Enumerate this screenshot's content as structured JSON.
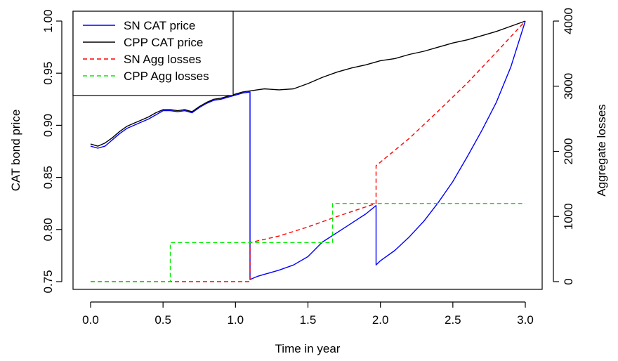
{
  "chart_data": {
    "type": "line",
    "xlabel": "Time in year",
    "ylabel": "CAT bond price",
    "y2label": "Aggregate losses",
    "xlim": [
      0,
      3
    ],
    "ylim": [
      0.75,
      1.0
    ],
    "y2lim": [
      0,
      4000
    ],
    "x_ticks": [
      "0.0",
      "0.5",
      "1.0",
      "1.5",
      "2.0",
      "2.5",
      "3.0"
    ],
    "y_ticks": [
      "0.75",
      "0.80",
      "0.85",
      "0.90",
      "0.95",
      "1.00"
    ],
    "y2_ticks": [
      "0",
      "1000",
      "2000",
      "3000",
      "4000"
    ],
    "legend_position": "top-left",
    "grid": false,
    "series": [
      {
        "name": "SN CAT price",
        "axis": "left",
        "color": "#0000ff",
        "style": "solid",
        "points": [
          [
            0.0,
            0.88
          ],
          [
            0.05,
            0.878
          ],
          [
            0.1,
            0.88
          ],
          [
            0.15,
            0.886
          ],
          [
            0.2,
            0.892
          ],
          [
            0.25,
            0.897
          ],
          [
            0.3,
            0.9
          ],
          [
            0.35,
            0.903
          ],
          [
            0.4,
            0.906
          ],
          [
            0.45,
            0.91
          ],
          [
            0.5,
            0.914
          ],
          [
            0.55,
            0.914
          ],
          [
            0.6,
            0.913
          ],
          [
            0.65,
            0.914
          ],
          [
            0.7,
            0.912
          ],
          [
            0.75,
            0.917
          ],
          [
            0.8,
            0.921
          ],
          [
            0.85,
            0.924
          ],
          [
            0.9,
            0.925
          ],
          [
            0.95,
            0.927
          ],
          [
            1.0,
            0.929
          ],
          [
            1.05,
            0.931
          ],
          [
            1.1,
            0.932
          ],
          [
            1.1,
            0.752
          ],
          [
            1.15,
            0.755
          ],
          [
            1.2,
            0.757
          ],
          [
            1.3,
            0.761
          ],
          [
            1.4,
            0.766
          ],
          [
            1.5,
            0.774
          ],
          [
            1.55,
            0.781
          ],
          [
            1.6,
            0.788
          ],
          [
            1.7,
            0.797
          ],
          [
            1.8,
            0.806
          ],
          [
            1.9,
            0.815
          ],
          [
            1.97,
            0.823
          ],
          [
            1.97,
            0.766
          ],
          [
            2.0,
            0.77
          ],
          [
            2.1,
            0.78
          ],
          [
            2.2,
            0.793
          ],
          [
            2.3,
            0.808
          ],
          [
            2.4,
            0.826
          ],
          [
            2.5,
            0.846
          ],
          [
            2.6,
            0.87
          ],
          [
            2.7,
            0.895
          ],
          [
            2.8,
            0.922
          ],
          [
            2.9,
            0.956
          ],
          [
            3.0,
            1.0
          ]
        ]
      },
      {
        "name": "CPP CAT price",
        "axis": "left",
        "color": "#000000",
        "style": "solid",
        "points": [
          [
            0.0,
            0.882
          ],
          [
            0.05,
            0.88
          ],
          [
            0.1,
            0.883
          ],
          [
            0.15,
            0.888
          ],
          [
            0.2,
            0.894
          ],
          [
            0.25,
            0.899
          ],
          [
            0.3,
            0.902
          ],
          [
            0.35,
            0.905
          ],
          [
            0.4,
            0.908
          ],
          [
            0.45,
            0.912
          ],
          [
            0.5,
            0.915
          ],
          [
            0.55,
            0.915
          ],
          [
            0.6,
            0.914
          ],
          [
            0.65,
            0.915
          ],
          [
            0.7,
            0.913
          ],
          [
            0.75,
            0.918
          ],
          [
            0.8,
            0.922
          ],
          [
            0.85,
            0.925
          ],
          [
            0.9,
            0.926
          ],
          [
            0.95,
            0.928
          ],
          [
            1.0,
            0.93
          ],
          [
            1.05,
            0.932
          ],
          [
            1.1,
            0.933
          ],
          [
            1.15,
            0.934
          ],
          [
            1.2,
            0.935
          ],
          [
            1.3,
            0.934
          ],
          [
            1.4,
            0.935
          ],
          [
            1.5,
            0.94
          ],
          [
            1.6,
            0.946
          ],
          [
            1.7,
            0.951
          ],
          [
            1.8,
            0.955
          ],
          [
            1.9,
            0.958
          ],
          [
            2.0,
            0.962
          ],
          [
            2.1,
            0.964
          ],
          [
            2.2,
            0.968
          ],
          [
            2.3,
            0.971
          ],
          [
            2.4,
            0.975
          ],
          [
            2.5,
            0.979
          ],
          [
            2.6,
            0.982
          ],
          [
            2.7,
            0.986
          ],
          [
            2.8,
            0.99
          ],
          [
            2.9,
            0.995
          ],
          [
            3.0,
            1.0
          ]
        ]
      },
      {
        "name": "SN Agg losses",
        "axis": "right",
        "color": "#ff0000",
        "style": "dashed",
        "points": [
          [
            0.0,
            0
          ],
          [
            1.1,
            0
          ],
          [
            1.1,
            600
          ],
          [
            1.3,
            700
          ],
          [
            1.5,
            840
          ],
          [
            1.7,
            1000
          ],
          [
            1.97,
            1200
          ],
          [
            1.97,
            1780
          ],
          [
            2.2,
            2200
          ],
          [
            2.4,
            2620
          ],
          [
            2.6,
            3050
          ],
          [
            2.8,
            3520
          ],
          [
            3.0,
            4000
          ]
        ]
      },
      {
        "name": "CPP Agg losses",
        "axis": "right",
        "color": "#00ee00",
        "style": "dashed",
        "points": [
          [
            0.0,
            0
          ],
          [
            0.55,
            0
          ],
          [
            0.55,
            600
          ],
          [
            1.67,
            600
          ],
          [
            1.67,
            1200
          ],
          [
            3.0,
            1200
          ]
        ]
      }
    ]
  }
}
